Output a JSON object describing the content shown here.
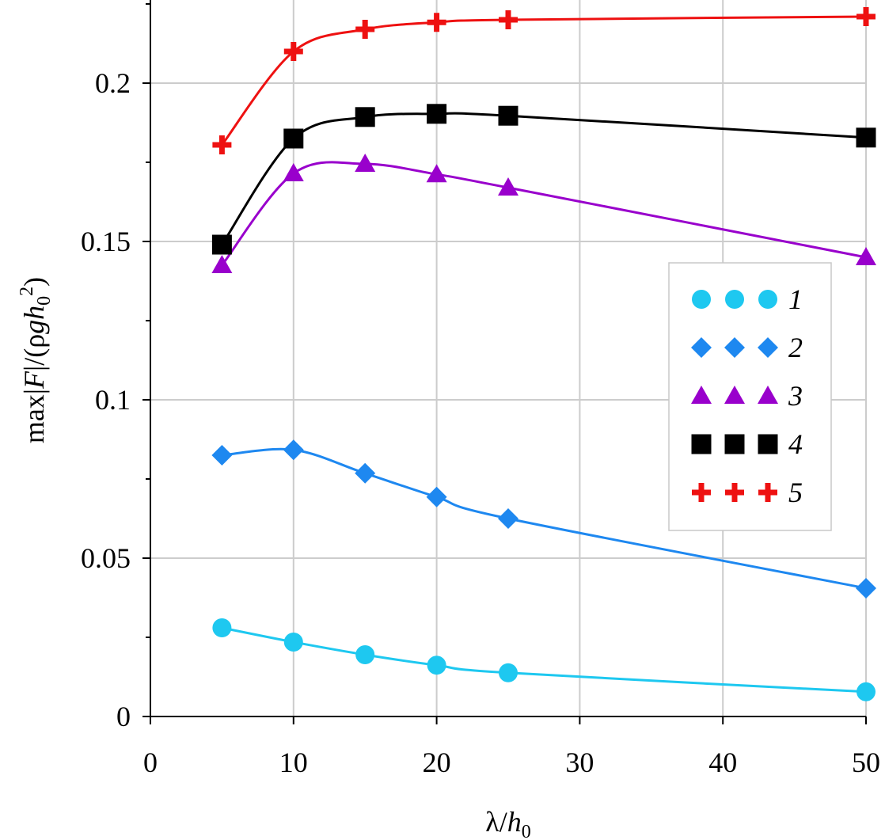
{
  "chart_data": {
    "type": "line",
    "x": [
      5,
      10,
      15,
      20,
      25,
      50
    ],
    "xlim": [
      0,
      50
    ],
    "ylim": [
      0,
      0.225
    ],
    "xticks": [
      0,
      10,
      20,
      30,
      40,
      50
    ],
    "xtick_labels": [
      "0",
      "10",
      "20",
      "30",
      "40",
      "50"
    ],
    "yticks": [
      0,
      0.05,
      0.1,
      0.15,
      0.2
    ],
    "ytick_labels": [
      "0",
      "0.05",
      "0.1",
      "0.15",
      "0.2"
    ],
    "grid": true,
    "legend_position": "right",
    "xlabel": {
      "main": "λ/",
      "var": "h",
      "sub": "0"
    },
    "ylabel": {
      "pre": "max|",
      "var": "F",
      "mid": "|/(ρ",
      "var2": "gh",
      "sub": "0",
      "sup": "2",
      "post": ")"
    },
    "series": [
      {
        "name": "1",
        "marker": "circle",
        "color": "#1ec8f0",
        "values": [
          0.028,
          0.0235,
          0.0195,
          0.0162,
          0.0138,
          0.0078
        ]
      },
      {
        "name": "2",
        "marker": "diamond",
        "color": "#1e88f0",
        "values": [
          0.0825,
          0.0842,
          0.0768,
          0.0693,
          0.0625,
          0.0405
        ]
      },
      {
        "name": "3",
        "marker": "triangle",
        "color": "#9900cc",
        "values": [
          0.1425,
          0.1715,
          0.1745,
          0.1712,
          0.167,
          0.145
        ]
      },
      {
        "name": "4",
        "marker": "square",
        "color": "#000000",
        "values": [
          0.149,
          0.1825,
          0.1893,
          0.1903,
          0.1897,
          0.1828
        ]
      },
      {
        "name": "5",
        "marker": "plus",
        "color": "#ee1111",
        "values": [
          0.1805,
          0.21,
          0.217,
          0.2192,
          0.22,
          0.221
        ]
      }
    ]
  }
}
